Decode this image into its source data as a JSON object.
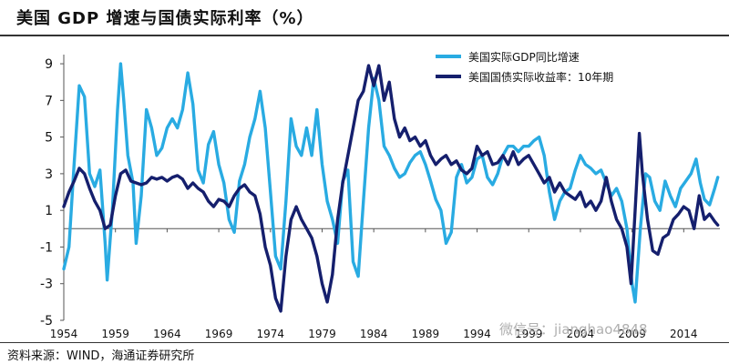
{
  "header": {
    "title": "美国 GDP 增速与国债实际利率（%）"
  },
  "footer": {
    "source": "资料来源：WIND，海通证券研究所"
  },
  "watermark": "微信号：jianghao4848",
  "chart_data": {
    "type": "line",
    "title": "美国 GDP 增速与国债实际利率（%）",
    "xlabel": "",
    "ylabel": "",
    "xlim": [
      1954,
      2017.5
    ],
    "ylim": [
      -5,
      9.5
    ],
    "x_ticks": [
      "1954",
      "1959",
      "1964",
      "1969",
      "1974",
      "1979",
      "1984",
      "1989",
      "1994",
      "1999",
      "2004",
      "2009",
      "2014"
    ],
    "y_ticks": [
      "9",
      "7",
      "5",
      "3",
      "1",
      "-1",
      "-3",
      "-5"
    ],
    "legend_position": "top-right",
    "series": [
      {
        "name": "美国实际GDP同比增速",
        "color": "#29abe2",
        "points": [
          [
            1954.0,
            -2.2
          ],
          [
            1954.5,
            -1.0
          ],
          [
            1955.0,
            3.5
          ],
          [
            1955.5,
            7.8
          ],
          [
            1956.0,
            7.2
          ],
          [
            1956.5,
            3.0
          ],
          [
            1957.0,
            2.3
          ],
          [
            1957.5,
            3.2
          ],
          [
            1958.0,
            -0.8
          ],
          [
            1958.2,
            -2.8
          ],
          [
            1958.7,
            1.0
          ],
          [
            1959.2,
            6.5
          ],
          [
            1959.5,
            9.0
          ],
          [
            1959.8,
            7.0
          ],
          [
            1960.2,
            4.0
          ],
          [
            1960.7,
            2.5
          ],
          [
            1961.0,
            -0.8
          ],
          [
            1961.5,
            1.8
          ],
          [
            1962.0,
            6.5
          ],
          [
            1962.5,
            5.5
          ],
          [
            1963.0,
            4.0
          ],
          [
            1963.5,
            4.4
          ],
          [
            1964.0,
            5.5
          ],
          [
            1964.5,
            6.0
          ],
          [
            1965.0,
            5.5
          ],
          [
            1965.5,
            6.5
          ],
          [
            1966.0,
            8.5
          ],
          [
            1966.5,
            6.8
          ],
          [
            1967.0,
            3.2
          ],
          [
            1967.5,
            2.5
          ],
          [
            1968.0,
            4.6
          ],
          [
            1968.5,
            5.3
          ],
          [
            1969.0,
            3.5
          ],
          [
            1969.5,
            2.5
          ],
          [
            1970.0,
            0.5
          ],
          [
            1970.5,
            -0.2
          ],
          [
            1971.0,
            2.6
          ],
          [
            1971.5,
            3.5
          ],
          [
            1972.0,
            5.0
          ],
          [
            1972.5,
            6.0
          ],
          [
            1973.0,
            7.5
          ],
          [
            1973.5,
            5.5
          ],
          [
            1974.0,
            2.0
          ],
          [
            1974.5,
            -1.5
          ],
          [
            1975.0,
            -2.2
          ],
          [
            1975.5,
            1.5
          ],
          [
            1976.0,
            6.0
          ],
          [
            1976.5,
            4.5
          ],
          [
            1977.0,
            4.0
          ],
          [
            1977.5,
            5.5
          ],
          [
            1978.0,
            4.0
          ],
          [
            1978.5,
            6.5
          ],
          [
            1979.0,
            3.5
          ],
          [
            1979.5,
            1.5
          ],
          [
            1980.0,
            0.5
          ],
          [
            1980.5,
            -0.8
          ],
          [
            1981.0,
            2.6
          ],
          [
            1981.5,
            3.2
          ],
          [
            1982.0,
            -1.8
          ],
          [
            1982.5,
            -2.6
          ],
          [
            1983.0,
            1.5
          ],
          [
            1983.5,
            5.5
          ],
          [
            1984.0,
            8.2
          ],
          [
            1984.5,
            7.0
          ],
          [
            1985.0,
            4.5
          ],
          [
            1985.5,
            4.0
          ],
          [
            1986.0,
            3.3
          ],
          [
            1986.5,
            2.8
          ],
          [
            1987.0,
            3.0
          ],
          [
            1987.5,
            3.6
          ],
          [
            1988.0,
            4.0
          ],
          [
            1988.5,
            4.2
          ],
          [
            1989.0,
            3.5
          ],
          [
            1989.5,
            2.6
          ],
          [
            1990.0,
            1.6
          ],
          [
            1990.5,
            1.0
          ],
          [
            1991.0,
            -0.8
          ],
          [
            1991.5,
            -0.2
          ],
          [
            1992.0,
            2.8
          ],
          [
            1992.5,
            3.5
          ],
          [
            1993.0,
            2.5
          ],
          [
            1993.5,
            2.8
          ],
          [
            1994.0,
            3.8
          ],
          [
            1994.5,
            4.0
          ],
          [
            1995.0,
            2.8
          ],
          [
            1995.5,
            2.4
          ],
          [
            1996.0,
            3.0
          ],
          [
            1996.5,
            4.0
          ],
          [
            1997.0,
            4.5
          ],
          [
            1997.5,
            4.5
          ],
          [
            1998.0,
            4.2
          ],
          [
            1998.5,
            4.5
          ],
          [
            1999.0,
            4.5
          ],
          [
            1999.5,
            4.8
          ],
          [
            2000.0,
            5.0
          ],
          [
            2000.5,
            4.0
          ],
          [
            2001.0,
            2.0
          ],
          [
            2001.5,
            0.5
          ],
          [
            2002.0,
            1.5
          ],
          [
            2002.5,
            2.0
          ],
          [
            2003.0,
            2.2
          ],
          [
            2003.5,
            3.2
          ],
          [
            2004.0,
            4.0
          ],
          [
            2004.5,
            3.5
          ],
          [
            2005.0,
            3.3
          ],
          [
            2005.5,
            3.0
          ],
          [
            2006.0,
            3.2
          ],
          [
            2006.5,
            2.5
          ],
          [
            2007.0,
            1.8
          ],
          [
            2007.5,
            2.2
          ],
          [
            2008.0,
            1.5
          ],
          [
            2008.5,
            0.0
          ],
          [
            2009.0,
            -3.0
          ],
          [
            2009.3,
            -4.0
          ],
          [
            2009.8,
            0.0
          ],
          [
            2010.3,
            3.0
          ],
          [
            2010.7,
            2.8
          ],
          [
            2011.2,
            1.5
          ],
          [
            2011.7,
            1.0
          ],
          [
            2012.2,
            2.6
          ],
          [
            2012.7,
            1.8
          ],
          [
            2013.2,
            1.2
          ],
          [
            2013.7,
            2.2
          ],
          [
            2014.2,
            2.6
          ],
          [
            2014.7,
            3.0
          ],
          [
            2015.2,
            3.8
          ],
          [
            2015.6,
            2.5
          ],
          [
            2016.0,
            1.6
          ],
          [
            2016.5,
            1.3
          ],
          [
            2017.0,
            2.2
          ],
          [
            2017.3,
            2.8
          ]
        ]
      },
      {
        "name": "美国国债实际收益率：10年期",
        "color": "#151f6d",
        "points": [
          [
            1954.0,
            1.2
          ],
          [
            1954.5,
            2.0
          ],
          [
            1955.0,
            2.6
          ],
          [
            1955.5,
            3.3
          ],
          [
            1956.0,
            3.0
          ],
          [
            1956.5,
            2.2
          ],
          [
            1957.0,
            1.5
          ],
          [
            1957.5,
            1.0
          ],
          [
            1958.0,
            0.0
          ],
          [
            1958.5,
            0.2
          ],
          [
            1959.0,
            1.8
          ],
          [
            1959.5,
            3.0
          ],
          [
            1960.0,
            3.2
          ],
          [
            1960.5,
            2.6
          ],
          [
            1961.0,
            2.5
          ],
          [
            1961.5,
            2.4
          ],
          [
            1962.0,
            2.5
          ],
          [
            1962.5,
            2.8
          ],
          [
            1963.0,
            2.7
          ],
          [
            1963.5,
            2.8
          ],
          [
            1964.0,
            2.6
          ],
          [
            1964.5,
            2.8
          ],
          [
            1965.0,
            2.9
          ],
          [
            1965.5,
            2.7
          ],
          [
            1966.0,
            2.2
          ],
          [
            1966.5,
            2.5
          ],
          [
            1967.0,
            2.2
          ],
          [
            1967.5,
            2.0
          ],
          [
            1968.0,
            1.5
          ],
          [
            1968.5,
            1.2
          ],
          [
            1969.0,
            1.6
          ],
          [
            1969.5,
            1.5
          ],
          [
            1970.0,
            1.2
          ],
          [
            1970.5,
            1.8
          ],
          [
            1971.0,
            2.2
          ],
          [
            1971.5,
            2.4
          ],
          [
            1972.0,
            2.0
          ],
          [
            1972.5,
            1.8
          ],
          [
            1973.0,
            0.8
          ],
          [
            1973.5,
            -1.0
          ],
          [
            1974.0,
            -2.0
          ],
          [
            1974.5,
            -3.8
          ],
          [
            1975.0,
            -4.5
          ],
          [
            1975.5,
            -1.5
          ],
          [
            1976.0,
            0.5
          ],
          [
            1976.5,
            1.2
          ],
          [
            1977.0,
            0.5
          ],
          [
            1977.5,
            0.0
          ],
          [
            1978.0,
            -0.5
          ],
          [
            1978.5,
            -1.5
          ],
          [
            1979.0,
            -3.0
          ],
          [
            1979.5,
            -4.0
          ],
          [
            1980.0,
            -2.5
          ],
          [
            1980.5,
            0.5
          ],
          [
            1981.0,
            2.5
          ],
          [
            1981.5,
            4.0
          ],
          [
            1982.0,
            5.5
          ],
          [
            1982.5,
            7.0
          ],
          [
            1983.0,
            7.5
          ],
          [
            1983.5,
            8.9
          ],
          [
            1984.0,
            7.8
          ],
          [
            1984.5,
            8.9
          ],
          [
            1985.0,
            7.0
          ],
          [
            1985.5,
            8.0
          ],
          [
            1986.0,
            6.0
          ],
          [
            1986.5,
            5.0
          ],
          [
            1987.0,
            5.5
          ],
          [
            1987.5,
            4.8
          ],
          [
            1988.0,
            5.0
          ],
          [
            1988.5,
            4.5
          ],
          [
            1989.0,
            4.8
          ],
          [
            1989.5,
            4.0
          ],
          [
            1990.0,
            3.5
          ],
          [
            1990.5,
            3.8
          ],
          [
            1991.0,
            4.0
          ],
          [
            1991.5,
            3.5
          ],
          [
            1992.0,
            3.7
          ],
          [
            1992.5,
            3.2
          ],
          [
            1993.0,
            3.0
          ],
          [
            1993.5,
            3.3
          ],
          [
            1994.0,
            4.5
          ],
          [
            1994.5,
            4.0
          ],
          [
            1995.0,
            4.2
          ],
          [
            1995.5,
            3.5
          ],
          [
            1996.0,
            3.6
          ],
          [
            1996.5,
            4.0
          ],
          [
            1997.0,
            3.5
          ],
          [
            1997.5,
            4.2
          ],
          [
            1998.0,
            3.5
          ],
          [
            1998.5,
            3.8
          ],
          [
            1999.0,
            4.0
          ],
          [
            1999.5,
            3.5
          ],
          [
            2000.0,
            3.0
          ],
          [
            2000.5,
            2.5
          ],
          [
            2001.0,
            2.8
          ],
          [
            2001.5,
            2.0
          ],
          [
            2002.0,
            2.5
          ],
          [
            2002.5,
            2.0
          ],
          [
            2003.0,
            1.8
          ],
          [
            2003.5,
            1.6
          ],
          [
            2004.0,
            2.0
          ],
          [
            2004.5,
            1.2
          ],
          [
            2005.0,
            1.5
          ],
          [
            2005.5,
            1.0
          ],
          [
            2006.0,
            1.5
          ],
          [
            2006.5,
            2.8
          ],
          [
            2007.0,
            1.5
          ],
          [
            2007.5,
            0.5
          ],
          [
            2008.0,
            0.0
          ],
          [
            2008.5,
            -1.0
          ],
          [
            2008.9,
            -3.0
          ],
          [
            2009.3,
            1.0
          ],
          [
            2009.7,
            5.2
          ],
          [
            2010.0,
            3.0
          ],
          [
            2010.5,
            0.5
          ],
          [
            2011.0,
            -1.2
          ],
          [
            2011.5,
            -1.4
          ],
          [
            2012.0,
            -0.5
          ],
          [
            2012.5,
            -0.3
          ],
          [
            2013.0,
            0.5
          ],
          [
            2013.5,
            0.8
          ],
          [
            2014.0,
            1.2
          ],
          [
            2014.5,
            1.0
          ],
          [
            2015.0,
            0.0
          ],
          [
            2015.5,
            1.8
          ],
          [
            2016.0,
            0.5
          ],
          [
            2016.5,
            0.8
          ],
          [
            2017.0,
            0.4
          ],
          [
            2017.3,
            0.2
          ]
        ]
      }
    ]
  }
}
